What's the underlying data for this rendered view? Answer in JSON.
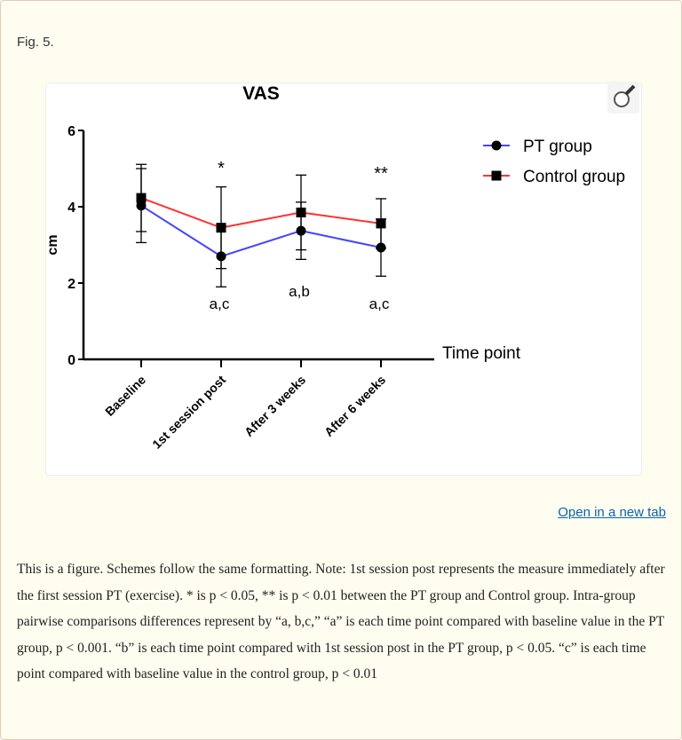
{
  "figure_label": "Fig. 5.",
  "open_link": "Open in a new tab",
  "caption": "This is a figure. Schemes follow the same formatting. Note: 1st session post represents the measure immediately after the first session PT (exercise). * is p < 0.05, ** is p < 0.01 between the PT group and Control group. Intra-group pairwise comparisons differences represent by “a, b,c,” “a” is each time point compared with baseline value in the PT group, p < 0.001. “b” is each time point compared with 1st session post in the PT group, p < 0.05. “c” is each time point compared with baseline value in the control group, p < 0.01",
  "chart_data": {
    "type": "line",
    "title": "VAS",
    "xlabel": "Time point",
    "ylabel": "cm",
    "ylim": [
      0,
      6
    ],
    "yticks": [
      "0",
      "2",
      "4",
      "6"
    ],
    "categories": [
      "Baseline",
      "1st session post",
      "After 3 weeks",
      "After 6 weeks"
    ],
    "legend_placement": "top-right",
    "grid": false,
    "series": [
      {
        "name": "PT group",
        "color": "#4444ff",
        "marker": "circle",
        "values": [
          4.03,
          2.7,
          3.37,
          2.93
        ],
        "error": [
          0.97,
          0.8,
          0.75,
          0.75
        ]
      },
      {
        "name": "Control group",
        "color": "#ff3333",
        "marker": "square",
        "values": [
          4.23,
          3.45,
          3.85,
          3.56
        ],
        "error": [
          0.88,
          1.07,
          0.98,
          0.65
        ]
      }
    ],
    "significance_annotations": [
      "",
      "*",
      "",
      "**"
    ],
    "pairwise_annotations": [
      "",
      "a,c",
      "a,b",
      "a,c"
    ]
  }
}
